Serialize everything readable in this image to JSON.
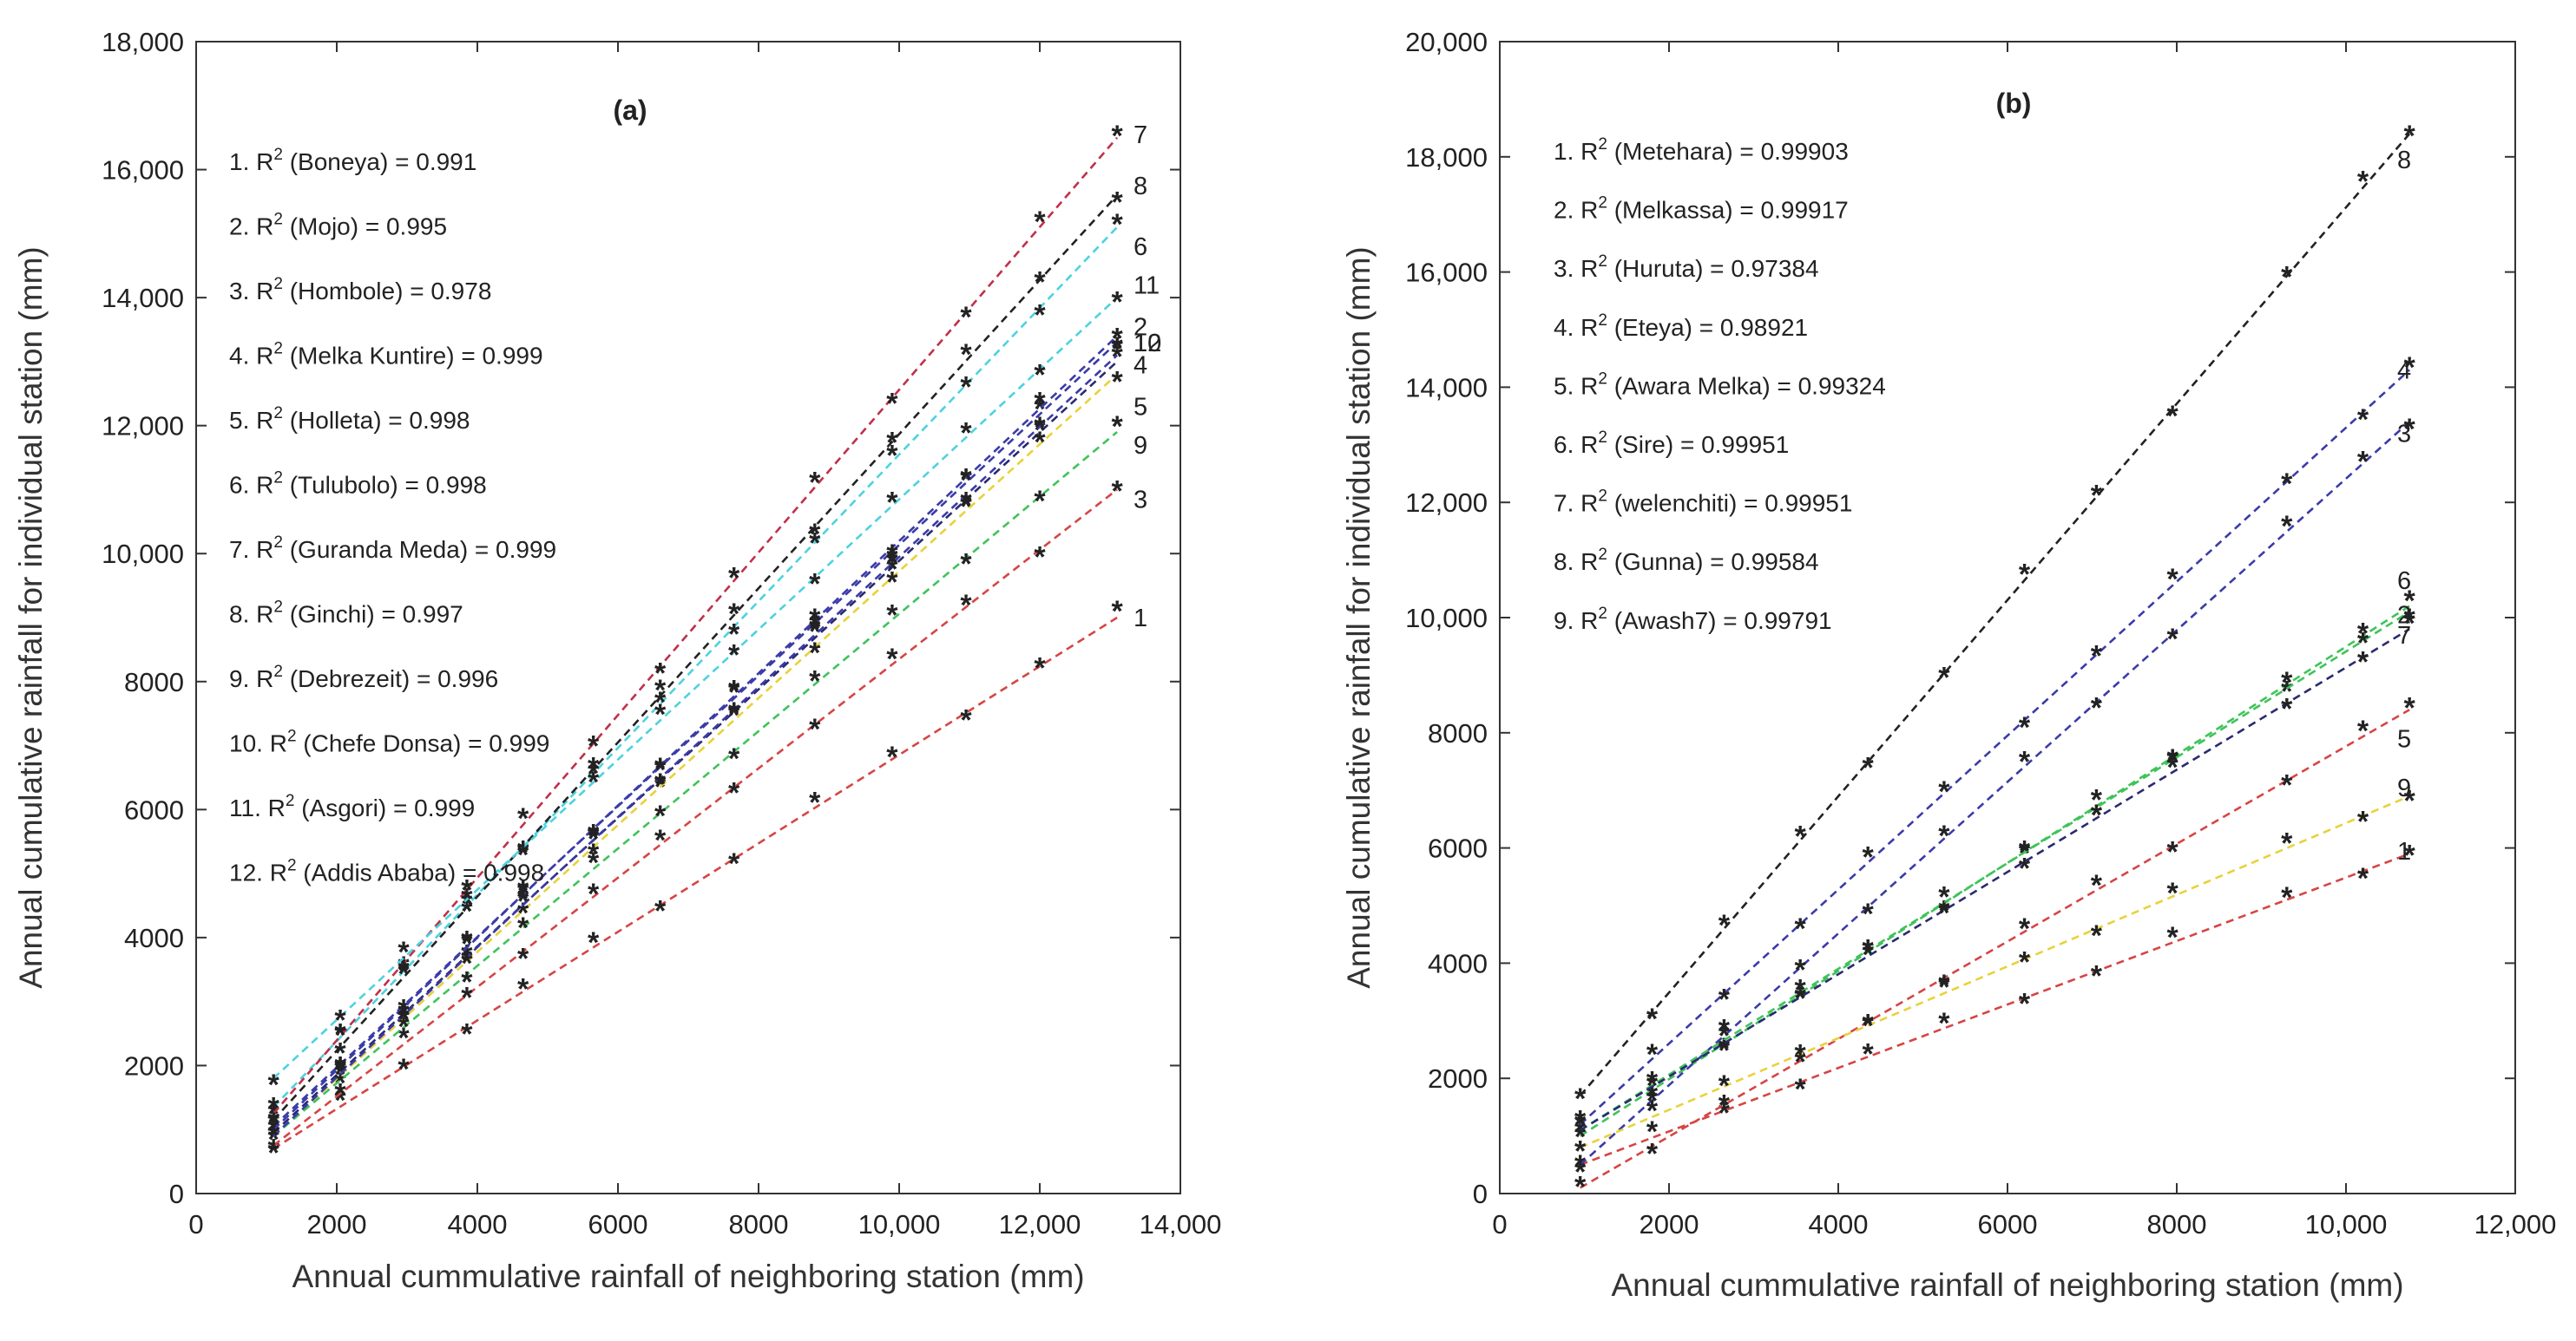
{
  "chart_data": [
    {
      "type": "scatter",
      "title": "(a)",
      "xlabel": "Annual cummulative rainfall of neighboring station (mm)",
      "ylabel": "Annual cumulative rainfall for individual station (mm)",
      "xlim": [
        0,
        14000
      ],
      "ylim": [
        0,
        18000
      ],
      "xticks": [
        "0",
        "2000",
        "4000",
        "6000",
        "8000",
        "10,000",
        "12,000",
        "14,000"
      ],
      "yticks": [
        "0",
        "2000",
        "4000",
        "6000",
        "8000",
        "10,000",
        "12,000",
        "14,000",
        "16,000",
        "18,000"
      ],
      "legend": [
        {
          "text": "1. R",
          "sup": "2",
          "rest": " (Boneya) = 0.991"
        },
        {
          "text": "2. R",
          "sup": "2",
          "rest": " (Mojo) = 0.995"
        },
        {
          "text": "3. R",
          "sup": "2",
          "rest": " (Hombole) = 0.978"
        },
        {
          "text": "4. R",
          "sup": "2",
          "rest": " (Melka Kuntire) = 0.999"
        },
        {
          "text": "5. R",
          "sup": "2",
          "rest": " (Holleta) = 0.998"
        },
        {
          "text": "6. R",
          "sup": "2",
          "rest": " (Tulubolo) = 0.998"
        },
        {
          "text": "7. R",
          "sup": "2",
          "rest": " (Guranda Meda) = 0.999"
        },
        {
          "text": "8. R",
          "sup": "2",
          "rest": " (Ginchi) = 0.997"
        },
        {
          "text": "9. R",
          "sup": "2",
          "rest": " (Debrezeit) = 0.996"
        },
        {
          "text": "10. R",
          "sup": "2",
          "rest": " (Chefe Donsa) = 0.999"
        },
        {
          "text": "11. R",
          "sup": "2",
          "rest": " (Asgori) = 0.999"
        },
        {
          "text": "12. R",
          "sup": "2",
          "rest": " (Addis Ababa) = 0.998"
        }
      ],
      "x": [
        1100,
        2050,
        2950,
        3850,
        4650,
        5650,
        6600,
        7650,
        8800,
        9900,
        10950,
        12000,
        13100
      ],
      "series": [
        {
          "name": "1",
          "color": "#d64545",
          "marker": "#1f77b4",
          "y_start": 700,
          "y_end": 9000,
          "label": "1",
          "label_y": 9000
        },
        {
          "name": "2",
          "color": "#3b3ba8",
          "marker": "#7e2f8e",
          "y_start": 1050,
          "y_end": 13300,
          "label": "2",
          "label_y": 13550
        },
        {
          "name": "3",
          "color": "#d64545",
          "marker": "#4dbeee",
          "y_start": 750,
          "y_end": 11000,
          "label": "3",
          "label_y": 10850
        },
        {
          "name": "4",
          "color": "#2a2a70",
          "marker": "#1f77b4",
          "y_start": 950,
          "y_end": 13000,
          "label": "4",
          "label_y": 12950
        },
        {
          "name": "5",
          "color": "#e8d23a",
          "marker": "#edb120",
          "y_start": 900,
          "y_end": 12800,
          "label": "5",
          "label_y": 12300
        },
        {
          "name": "6",
          "color": "#4dd2e0",
          "marker": "#d95319",
          "y_start": 1350,
          "y_end": 15100,
          "label": "6",
          "label_y": 14800
        },
        {
          "name": "7",
          "color": "#c0304a",
          "marker": "#a2142f",
          "y_start": 1250,
          "y_end": 16500,
          "label": "7",
          "label_y": 16550
        },
        {
          "name": "8",
          "color": "#222222",
          "marker": "#a2142f",
          "y_start": 1150,
          "y_end": 15600,
          "label": "8",
          "label_y": 15750
        },
        {
          "name": "9",
          "color": "#3fc35a",
          "marker": "#4dbeee",
          "y_start": 900,
          "y_end": 11900,
          "label": "9",
          "label_y": 11700
        },
        {
          "name": "10",
          "color": "#3b3ba8",
          "marker": "#7e2f8e",
          "y_start": 1000,
          "y_end": 13400,
          "label": "10",
          "label_y": 13300
        },
        {
          "name": "11",
          "color": "#4dd2e0",
          "marker": "#77ac30",
          "y_start": 1800,
          "y_end": 14000,
          "label": "11",
          "label_y": 14200
        },
        {
          "name": "12",
          "color": "#3b3ba8",
          "marker": "#4dbeee",
          "y_start": 900,
          "y_end": 13100,
          "label": "12",
          "label_y": 13300
        }
      ]
    },
    {
      "type": "scatter",
      "title": "(b)",
      "xlabel": "Annual cummulative rainfall of neighboring station (mm)",
      "ylabel": "Annual cumulative rainfall for individual station (mm)",
      "xlim": [
        0,
        12000
      ],
      "ylim": [
        0,
        20000
      ],
      "xticks": [
        "0",
        "2000",
        "4000",
        "6000",
        "8000",
        "10,000",
        "12,000"
      ],
      "yticks": [
        "0",
        "2000",
        "4000",
        "6000",
        "8000",
        "10,000",
        "12,000",
        "14,000",
        "16,000",
        "18,000",
        "20,000"
      ],
      "legend": [
        {
          "text": "1. R",
          "sup": "2",
          "rest": " (Metehara) = 0.99903"
        },
        {
          "text": "2. R",
          "sup": "2",
          "rest": " (Melkassa) = 0.99917"
        },
        {
          "text": "3. R",
          "sup": "2",
          "rest": " (Huruta) = 0.97384"
        },
        {
          "text": "4. R",
          "sup": "2",
          "rest": " (Eteya) = 0.98921"
        },
        {
          "text": "5. R",
          "sup": "2",
          "rest": " (Awara Melka) = 0.99324"
        },
        {
          "text": "6. R",
          "sup": "2",
          "rest": " (Sire) = 0.99951"
        },
        {
          "text": "7. R",
          "sup": "2",
          "rest": " (welenchiti) = 0.99951"
        },
        {
          "text": "8. R",
          "sup": "2",
          "rest": " (Gunna) = 0.99584"
        },
        {
          "text": "9. R",
          "sup": "2",
          "rest": " (Awash7) = 0.99791"
        }
      ],
      "x": [
        950,
        1800,
        2650,
        3550,
        4350,
        5250,
        6200,
        7050,
        7950,
        9300,
        10200,
        10750
      ],
      "series": [
        {
          "name": "1",
          "color": "#d64545",
          "marker": "#d95319",
          "y_start": 500,
          "y_end": 5900,
          "label": "1",
          "label_y": 5950
        },
        {
          "name": "2",
          "color": "#3fc35a",
          "marker": "#a2142f",
          "y_start": 1000,
          "y_end": 10200,
          "label": "2",
          "label_y": 10050
        },
        {
          "name": "3",
          "color": "#3b3ba8",
          "marker": "#4dbeee",
          "y_start": 500,
          "y_end": 13400,
          "label": "3",
          "label_y": 13200
        },
        {
          "name": "4",
          "color": "#3b3ba8",
          "marker": "#1f77b4",
          "y_start": 1200,
          "y_end": 14300,
          "label": "4",
          "label_y": 14300
        },
        {
          "name": "5",
          "color": "#d64545",
          "marker": "#edb120",
          "y_start": 100,
          "y_end": 8400,
          "label": "5",
          "label_y": 7900
        },
        {
          "name": "6",
          "color": "#3fc35a",
          "marker": "#7e2f8e",
          "y_start": 1100,
          "y_end": 10100,
          "label": "6",
          "label_y": 10650
        },
        {
          "name": "7",
          "color": "#2a2a70",
          "marker": "#77ac30",
          "y_start": 1100,
          "y_end": 9800,
          "label": "7",
          "label_y": 9700
        },
        {
          "name": "8",
          "color": "#222222",
          "marker": "#d95319",
          "y_start": 1700,
          "y_end": 18400,
          "label": "8",
          "label_y": 17950
        },
        {
          "name": "9",
          "color": "#e8d23a",
          "marker": "#7e2f8e",
          "y_start": 800,
          "y_end": 6900,
          "label": "9",
          "label_y": 7050
        }
      ]
    }
  ]
}
